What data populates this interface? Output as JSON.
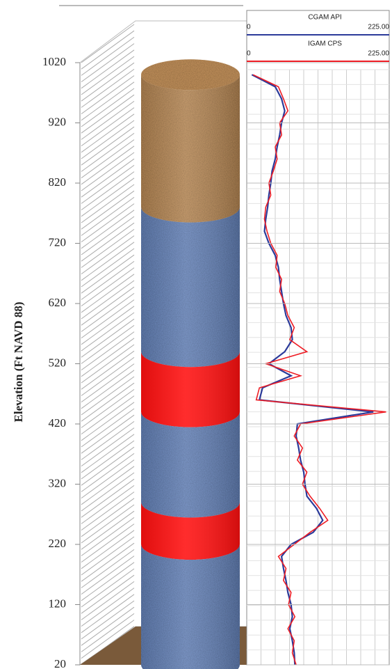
{
  "chart_data": {
    "type": "well-log",
    "y_label": "Elevation (Ft NAVD 88)",
    "ylim": [
      20,
      1020
    ],
    "yticks": [
      20,
      120,
      220,
      320,
      420,
      520,
      620,
      720,
      820,
      920,
      1020
    ],
    "xlim": [
      0,
      225
    ],
    "xticks": [
      0,
      {
        "value": 225,
        "label": "225.00"
      }
    ],
    "layers": [
      {
        "top": 1000,
        "bottom": 780,
        "color": "#c8955e"
      },
      {
        "top": 780,
        "bottom": 540,
        "color": "#6f8fc9"
      },
      {
        "top": 540,
        "bottom": 440,
        "color": "#ff1010"
      },
      {
        "top": 440,
        "bottom": 290,
        "color": "#6f8fc9"
      },
      {
        "top": 290,
        "bottom": 220,
        "color": "#ff1010"
      },
      {
        "top": 220,
        "bottom": 20,
        "color": "#6f8fc9"
      }
    ],
    "elevations": [
      1000,
      980,
      960,
      940,
      920,
      900,
      880,
      860,
      840,
      820,
      800,
      780,
      760,
      740,
      720,
      700,
      680,
      660,
      640,
      620,
      600,
      580,
      560,
      540,
      520,
      500,
      480,
      460,
      440,
      420,
      400,
      380,
      360,
      340,
      320,
      300,
      280,
      260,
      240,
      220,
      200,
      180,
      160,
      140,
      120,
      100,
      80,
      60,
      40,
      20
    ],
    "series": [
      {
        "name": "CGAM  API",
        "color": "#2b3a9a",
        "values": [
          8,
          45,
          55,
          60,
          55,
          52,
          48,
          45,
          40,
          38,
          35,
          33,
          30,
          28,
          35,
          45,
          50,
          52,
          55,
          58,
          62,
          70,
          72,
          60,
          35,
          70,
          25,
          20,
          200,
          80,
          78,
          82,
          85,
          90,
          92,
          95,
          110,
          120,
          105,
          70,
          55,
          58,
          62,
          65,
          70,
          72,
          68,
          72,
          75,
          76
        ]
      },
      {
        "name": "IGAM  CPS",
        "color": "#ee1c24",
        "values": [
          10,
          50,
          58,
          65,
          52,
          55,
          45,
          48,
          42,
          35,
          38,
          30,
          28,
          32,
          38,
          48,
          46,
          55,
          52,
          60,
          65,
          75,
          68,
          95,
          30,
          85,
          20,
          15,
          220,
          85,
          75,
          88,
          80,
          95,
          88,
          100,
          115,
          128,
          100,
          75,
          50,
          62,
          58,
          70,
          66,
          76,
          65,
          75,
          72,
          78
        ]
      }
    ]
  }
}
